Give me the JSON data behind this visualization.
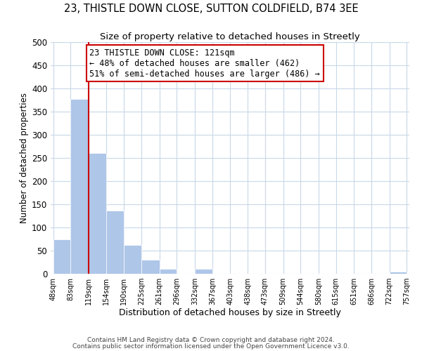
{
  "title1": "23, THISTLE DOWN CLOSE, SUTTON COLDFIELD, B74 3EE",
  "title2": "Size of property relative to detached houses in Streetly",
  "xlabel": "Distribution of detached houses by size in Streetly",
  "ylabel": "Number of detached properties",
  "bar_left_edges": [
    48,
    83,
    119,
    154,
    190,
    225,
    261,
    296,
    332,
    367,
    403,
    438,
    473,
    509,
    544,
    580,
    615,
    651,
    686,
    722
  ],
  "bar_widths": [
    35,
    36,
    35,
    36,
    35,
    36,
    35,
    36,
    35,
    36,
    35,
    35,
    36,
    35,
    36,
    35,
    36,
    35,
    36,
    35
  ],
  "bar_heights": [
    75,
    378,
    260,
    137,
    62,
    30,
    10,
    0,
    10,
    0,
    0,
    0,
    0,
    0,
    0,
    0,
    0,
    0,
    0,
    5
  ],
  "bar_color": "#aec6e8",
  "bar_edgecolor": "white",
  "grid_color": "#c8d8e8",
  "vline_x": 119,
  "vline_color": "#cc0000",
  "annotation_text": "23 THISTLE DOWN CLOSE: 121sqm\n← 48% of detached houses are smaller (462)\n51% of semi-detached houses are larger (486) →",
  "annotation_box_edgecolor": "#cc0000",
  "annotation_box_facecolor": "#ffffff",
  "ylim": [
    0,
    500
  ],
  "xlim_left": 43,
  "xlim_right": 762,
  "xtick_labels": [
    "48sqm",
    "83sqm",
    "119sqm",
    "154sqm",
    "190sqm",
    "225sqm",
    "261sqm",
    "296sqm",
    "332sqm",
    "367sqm",
    "403sqm",
    "438sqm",
    "473sqm",
    "509sqm",
    "544sqm",
    "580sqm",
    "615sqm",
    "651sqm",
    "686sqm",
    "722sqm",
    "757sqm"
  ],
  "footnote1": "Contains HM Land Registry data © Crown copyright and database right 2024.",
  "footnote2": "Contains public sector information licensed under the Open Government Licence v3.0.",
  "title1_fontsize": 10.5,
  "title2_fontsize": 9.5,
  "xlabel_fontsize": 9,
  "ylabel_fontsize": 8.5,
  "xtick_fontsize": 7,
  "ytick_fontsize": 8.5,
  "footnote_fontsize": 6.5,
  "annotation_fontsize": 8.5
}
